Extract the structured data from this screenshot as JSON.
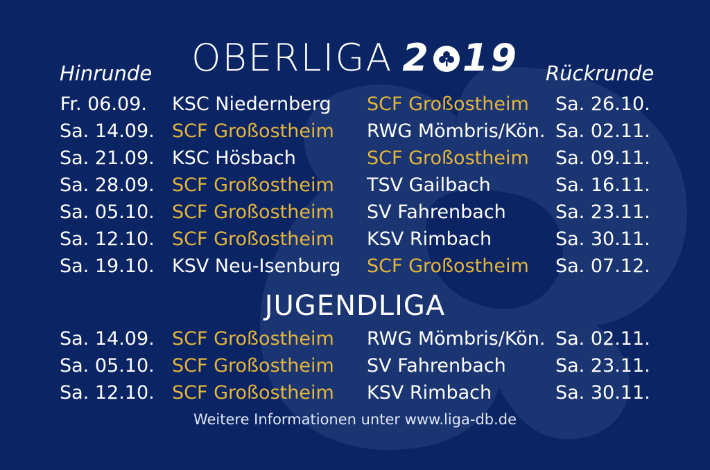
{
  "colors": {
    "background": "#0b2463",
    "text": "#ffffff",
    "highlight": "#e4b63b",
    "watermark": "#2a4480"
  },
  "title": {
    "text": "OBERLIGA",
    "year": "2019",
    "year_before": "2",
    "year_after": "19"
  },
  "headers": {
    "first_half": "Hinrunde",
    "second_half": "Rückrunde"
  },
  "oberliga": [
    {
      "date1": "Fr. 06.09.",
      "home": "KSC Niedernberg",
      "away": "SCF Großostheim",
      "date2": "Sa. 26.10."
    },
    {
      "date1": "Sa. 14.09.",
      "home": "SCF Großostheim",
      "away": "RWG Mömbris/Kön.",
      "date2": "Sa. 02.11."
    },
    {
      "date1": "Sa. 21.09.",
      "home": "KSC Hösbach",
      "away": "SCF Großostheim",
      "date2": "Sa. 09.11."
    },
    {
      "date1": "Sa. 28.09.",
      "home": "SCF Großostheim",
      "away": "TSV Gailbach",
      "date2": "Sa. 16.11."
    },
    {
      "date1": "Sa. 05.10.",
      "home": "SCF Großostheim",
      "away": "SV Fahrenbach",
      "date2": "Sa. 23.11."
    },
    {
      "date1": "Sa. 12.10.",
      "home": "SCF Großostheim",
      "away": "KSV Rimbach",
      "date2": "Sa. 30.11."
    },
    {
      "date1": "Sa. 19.10.",
      "home": "KSV Neu-Isenburg",
      "away": "SCF Großostheim",
      "date2": "Sa. 07.12."
    }
  ],
  "jugendliga_title": "JUGENDLIGA",
  "jugendliga": [
    {
      "date1": "Sa. 14.09.",
      "home": "SCF Großostheim",
      "away": "RWG Mömbris/Kön.",
      "date2": "Sa. 02.11."
    },
    {
      "date1": "Sa. 05.10.",
      "home": "SCF Großostheim",
      "away": "SV Fahrenbach",
      "date2": "Sa. 23.11."
    },
    {
      "date1": "Sa. 12.10.",
      "home": "SCF Großostheim",
      "away": "KSV Rimbach",
      "date2": "Sa. 30.11."
    }
  ],
  "footer": "Weitere Informationen unter www.liga-db.de",
  "icons": {
    "title_zero": "clover-icon",
    "background": "clover-watermark-icon"
  }
}
